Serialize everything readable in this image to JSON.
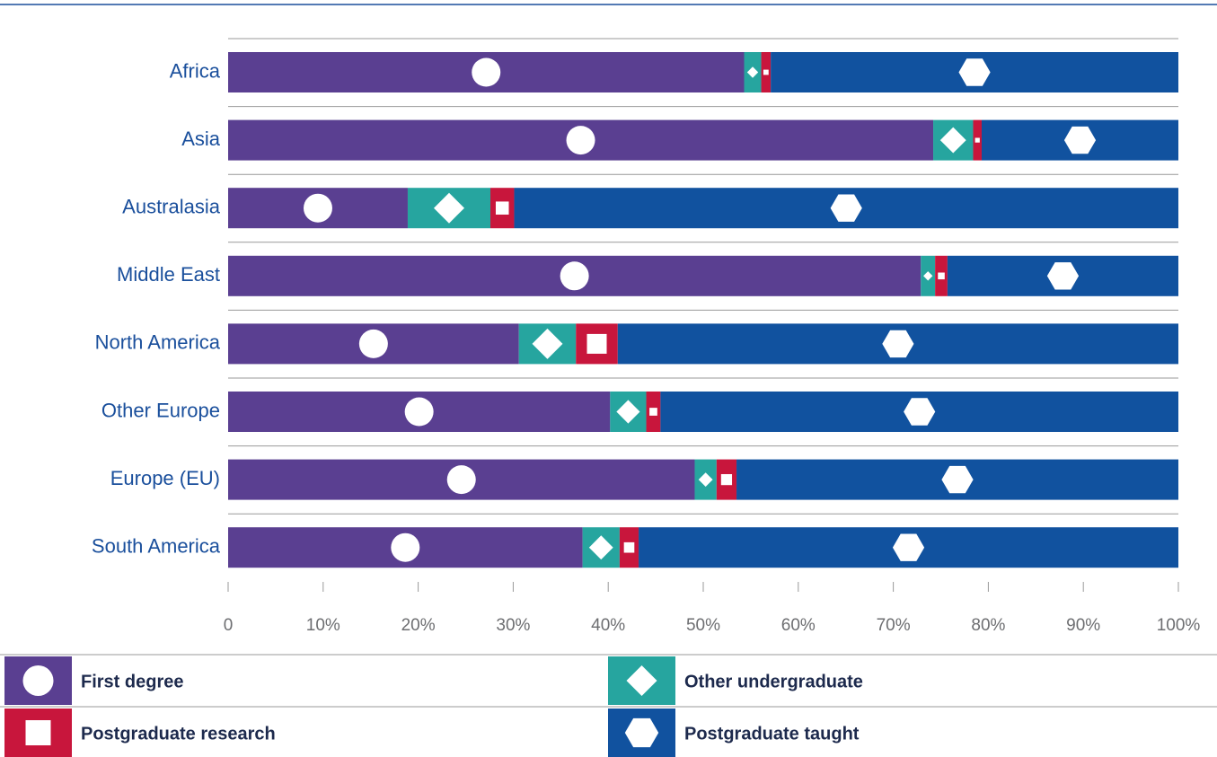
{
  "chart_data": {
    "type": "stacked-bar-horizontal",
    "categories": [
      "Africa",
      "Asia",
      "Australasia",
      "Middle East",
      "North America",
      "Other Europe",
      "Europe (EU)",
      "South America"
    ],
    "series": [
      {
        "name": "First degree",
        "color": "#5a3f91",
        "values": [
          54.3,
          74.2,
          18.9,
          72.9,
          30.6,
          40.2,
          49.1,
          37.3
        ]
      },
      {
        "name": "Other undergraduate",
        "color": "#26a59f",
        "values": [
          1.8,
          4.2,
          8.7,
          1.5,
          6.0,
          3.8,
          2.3,
          3.9
        ]
      },
      {
        "name": "Postgraduate research",
        "color": "#c8163c",
        "values": [
          1.0,
          0.9,
          2.5,
          1.3,
          4.4,
          1.5,
          2.1,
          2.0
        ]
      },
      {
        "name": "Postgraduate taught",
        "color": "#11529f",
        "values": [
          42.9,
          20.7,
          69.9,
          24.3,
          59.0,
          54.5,
          46.5,
          56.8
        ]
      }
    ],
    "xlim": [
      0,
      100
    ],
    "xticks": [
      0,
      {
        "value": 10,
        "label": "10%"
      },
      {
        "value": 20,
        "label": "20%"
      },
      {
        "value": 30,
        "label": "30%"
      },
      {
        "value": 40,
        "label": "40%"
      },
      {
        "value": 50,
        "label": "50%"
      },
      {
        "value": 60,
        "label": "60%"
      },
      {
        "value": 70,
        "label": "70%"
      },
      {
        "value": 80,
        "label": "80%"
      },
      {
        "value": 90,
        "label": "90%"
      },
      {
        "value": 100,
        "label": "100%"
      }
    ]
  }
}
